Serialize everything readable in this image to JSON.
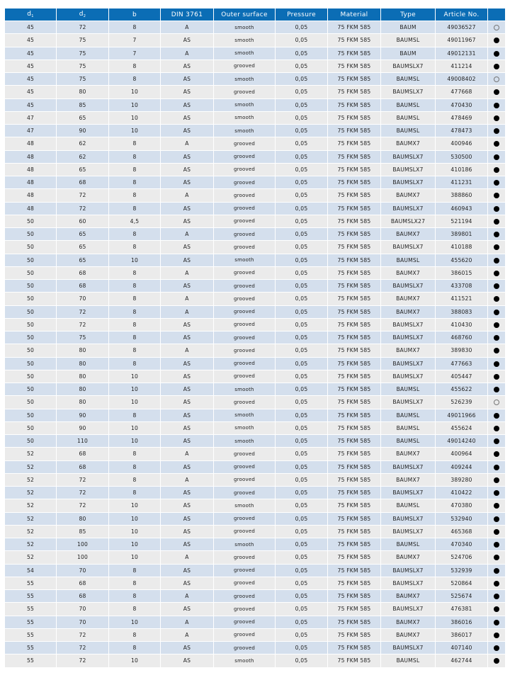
{
  "header": [
    {
      "label": "d",
      "sub": "1"
    },
    {
      "label": "d",
      "sub": "2"
    },
    {
      "label": "b"
    },
    {
      "label": "DIN 3761"
    },
    {
      "label": "Outer surface"
    },
    {
      "label": "Pressure"
    },
    {
      "label": "Material"
    },
    {
      "label": "Type"
    },
    {
      "label": "Article No."
    },
    {
      "label": ""
    }
  ],
  "colors": {
    "header": "#0b6db5",
    "row_odd": "#d4dfed",
    "row_even": "#ebebeb",
    "availability_filled": "#000000"
  },
  "availability_icons": {
    "filled": "filled-circle-icon",
    "open": "open-circle-icon"
  },
  "rows": [
    [
      "45",
      "72",
      "8",
      "A",
      "smooth",
      "0,05",
      "75 FKM 585",
      "BAUM",
      "49036527",
      "open"
    ],
    [
      "45",
      "75",
      "7",
      "AS",
      "smooth",
      "0,05",
      "75 FKM 585",
      "BAUMSL",
      "49011967",
      "filled"
    ],
    [
      "45",
      "75",
      "7",
      "A",
      "smooth",
      "0,05",
      "75 FKM 585",
      "BAUM",
      "49012131",
      "filled"
    ],
    [
      "45",
      "75",
      "8",
      "AS",
      "grooved",
      "0,05",
      "75 FKM 585",
      "BAUMSLX7",
      "411214",
      "filled"
    ],
    [
      "45",
      "75",
      "8",
      "AS",
      "smooth",
      "0,05",
      "75 FKM 585",
      "BAUMSL",
      "49008402",
      "open"
    ],
    [
      "45",
      "80",
      "10",
      "AS",
      "grooved",
      "0,05",
      "75 FKM 585",
      "BAUMSLX7",
      "477668",
      "filled"
    ],
    [
      "45",
      "85",
      "10",
      "AS",
      "smooth",
      "0,05",
      "75 FKM 585",
      "BAUMSL",
      "470430",
      "filled"
    ],
    [
      "47",
      "65",
      "10",
      "AS",
      "smooth",
      "0,05",
      "75 FKM 585",
      "BAUMSL",
      "478469",
      "filled"
    ],
    [
      "47",
      "90",
      "10",
      "AS",
      "smooth",
      "0,05",
      "75 FKM 585",
      "BAUMSL",
      "478473",
      "filled"
    ],
    [
      "48",
      "62",
      "8",
      "A",
      "grooved",
      "0,05",
      "75 FKM 585",
      "BAUMX7",
      "400946",
      "filled"
    ],
    [
      "48",
      "62",
      "8",
      "AS",
      "grooved",
      "0,05",
      "75 FKM 585",
      "BAUMSLX7",
      "530500",
      "filled"
    ],
    [
      "48",
      "65",
      "8",
      "AS",
      "grooved",
      "0,05",
      "75 FKM 585",
      "BAUMSLX7",
      "410186",
      "filled"
    ],
    [
      "48",
      "68",
      "8",
      "AS",
      "grooved",
      "0,05",
      "75 FKM 585",
      "BAUMSLX7",
      "411231",
      "filled"
    ],
    [
      "48",
      "72",
      "8",
      "A",
      "grooved",
      "0,05",
      "75 FKM 585",
      "BAUMX7",
      "388860",
      "filled"
    ],
    [
      "48",
      "72",
      "8",
      "AS",
      "grooved",
      "0,05",
      "75 FKM 585",
      "BAUMSLX7",
      "460943",
      "filled"
    ],
    [
      "50",
      "60",
      "4,5",
      "AS",
      "grooved",
      "0,05",
      "75 FKM 585",
      "BAUMSLX27",
      "521194",
      "filled"
    ],
    [
      "50",
      "65",
      "8",
      "A",
      "grooved",
      "0,05",
      "75 FKM 585",
      "BAUMX7",
      "389801",
      "filled"
    ],
    [
      "50",
      "65",
      "8",
      "AS",
      "grooved",
      "0,05",
      "75 FKM 585",
      "BAUMSLX7",
      "410188",
      "filled"
    ],
    [
      "50",
      "65",
      "10",
      "AS",
      "smooth",
      "0,05",
      "75 FKM 585",
      "BAUMSL",
      "455620",
      "filled"
    ],
    [
      "50",
      "68",
      "8",
      "A",
      "grooved",
      "0,05",
      "75 FKM 585",
      "BAUMX7",
      "386015",
      "filled"
    ],
    [
      "50",
      "68",
      "8",
      "AS",
      "grooved",
      "0,05",
      "75 FKM 585",
      "BAUMSLX7",
      "433708",
      "filled"
    ],
    [
      "50",
      "70",
      "8",
      "A",
      "grooved",
      "0,05",
      "75 FKM 585",
      "BAUMX7",
      "411521",
      "filled"
    ],
    [
      "50",
      "72",
      "8",
      "A",
      "grooved",
      "0,05",
      "75 FKM 585",
      "BAUMX7",
      "388083",
      "filled"
    ],
    [
      "50",
      "72",
      "8",
      "AS",
      "grooved",
      "0,05",
      "75 FKM 585",
      "BAUMSLX7",
      "410430",
      "filled"
    ],
    [
      "50",
      "75",
      "8",
      "AS",
      "grooved",
      "0,05",
      "75 FKM 585",
      "BAUMSLX7",
      "468760",
      "filled"
    ],
    [
      "50",
      "80",
      "8",
      "A",
      "grooved",
      "0,05",
      "75 FKM 585",
      "BAUMX7",
      "389830",
      "filled"
    ],
    [
      "50",
      "80",
      "8",
      "AS",
      "grooved",
      "0,05",
      "75 FKM 585",
      "BAUMSLX7",
      "477663",
      "filled"
    ],
    [
      "50",
      "80",
      "10",
      "AS",
      "grooved",
      "0,05",
      "75 FKM 585",
      "BAUMSLX7",
      "405447",
      "filled"
    ],
    [
      "50",
      "80",
      "10",
      "AS",
      "smooth",
      "0,05",
      "75 FKM 585",
      "BAUMSL",
      "455622",
      "filled"
    ],
    [
      "50",
      "80",
      "10",
      "AS",
      "grooved",
      "0,05",
      "75 FKM 585",
      "BAUMSLX7",
      "526239",
      "open"
    ],
    [
      "50",
      "90",
      "8",
      "AS",
      "smooth",
      "0,05",
      "75 FKM 585",
      "BAUMSL",
      "49011966",
      "filled"
    ],
    [
      "50",
      "90",
      "10",
      "AS",
      "smooth",
      "0,05",
      "75 FKM 585",
      "BAUMSL",
      "455624",
      "filled"
    ],
    [
      "50",
      "110",
      "10",
      "AS",
      "smooth",
      "0,05",
      "75 FKM 585",
      "BAUMSL",
      "49014240",
      "filled"
    ],
    [
      "52",
      "68",
      "8",
      "A",
      "grooved",
      "0,05",
      "75 FKM 585",
      "BAUMX7",
      "400964",
      "filled"
    ],
    [
      "52",
      "68",
      "8",
      "AS",
      "grooved",
      "0,05",
      "75 FKM 585",
      "BAUMSLX7",
      "409244",
      "filled"
    ],
    [
      "52",
      "72",
      "8",
      "A",
      "grooved",
      "0,05",
      "75 FKM 585",
      "BAUMX7",
      "389280",
      "filled"
    ],
    [
      "52",
      "72",
      "8",
      "AS",
      "grooved",
      "0,05",
      "75 FKM 585",
      "BAUMSLX7",
      "410422",
      "filled"
    ],
    [
      "52",
      "72",
      "10",
      "AS",
      "smooth",
      "0,05",
      "75 FKM 585",
      "BAUMSL",
      "470380",
      "filled"
    ],
    [
      "52",
      "80",
      "10",
      "AS",
      "grooved",
      "0,05",
      "75 FKM 585",
      "BAUMSLX7",
      "532940",
      "filled"
    ],
    [
      "52",
      "85",
      "10",
      "AS",
      "grooved",
      "0,05",
      "75 FKM 585",
      "BAUMSLX7",
      "465368",
      "filled"
    ],
    [
      "52",
      "100",
      "10",
      "AS",
      "smooth",
      "0,05",
      "75 FKM 585",
      "BAUMSL",
      "470340",
      "filled"
    ],
    [
      "52",
      "100",
      "10",
      "A",
      "grooved",
      "0,05",
      "75 FKM 585",
      "BAUMX7",
      "524706",
      "filled"
    ],
    [
      "54",
      "70",
      "8",
      "AS",
      "grooved",
      "0,05",
      "75 FKM 585",
      "BAUMSLX7",
      "532939",
      "filled"
    ],
    [
      "55",
      "68",
      "8",
      "AS",
      "grooved",
      "0,05",
      "75 FKM 585",
      "BAUMSLX7",
      "520864",
      "filled"
    ],
    [
      "55",
      "68",
      "8",
      "A",
      "grooved",
      "0,05",
      "75 FKM 585",
      "BAUMX7",
      "525674",
      "filled"
    ],
    [
      "55",
      "70",
      "8",
      "AS",
      "grooved",
      "0,05",
      "75 FKM 585",
      "BAUMSLX7",
      "476381",
      "filled"
    ],
    [
      "55",
      "70",
      "10",
      "A",
      "grooved",
      "0,05",
      "75 FKM 585",
      "BAUMX7",
      "386016",
      "filled"
    ],
    [
      "55",
      "72",
      "8",
      "A",
      "grooved",
      "0,05",
      "75 FKM 585",
      "BAUMX7",
      "386017",
      "filled"
    ],
    [
      "55",
      "72",
      "8",
      "AS",
      "grooved",
      "0,05",
      "75 FKM 585",
      "BAUMSLX7",
      "407140",
      "filled"
    ],
    [
      "55",
      "72",
      "10",
      "AS",
      "smooth",
      "0,05",
      "75 FKM 585",
      "BAUMSL",
      "462744",
      "filled"
    ]
  ]
}
